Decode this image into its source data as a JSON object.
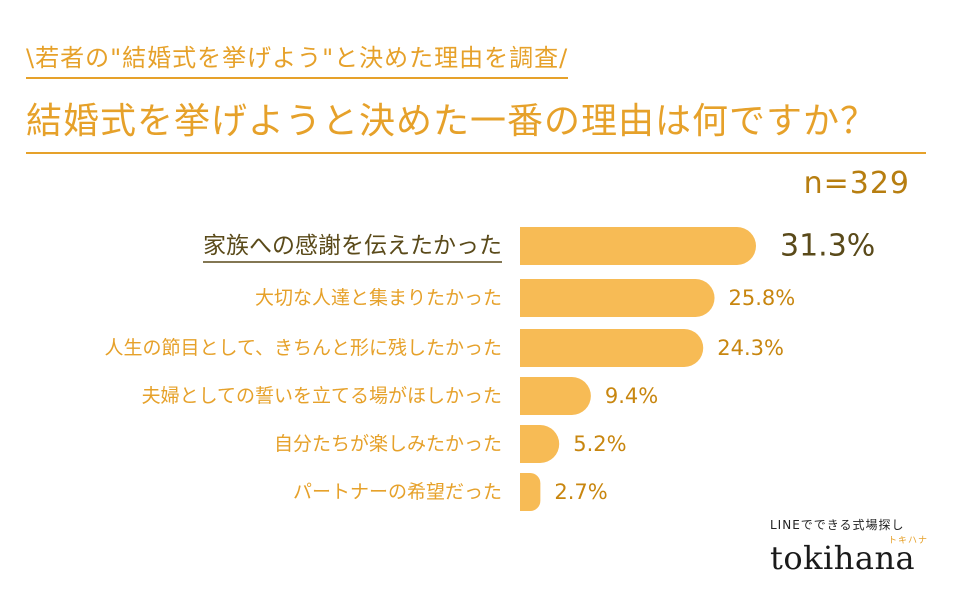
{
  "header": {
    "survey_tag": "\\若者の\"結婚式を挙げよう\"と決めた理由を調査/",
    "question": "結婚式を挙げようと決めた一番の理由は何ですか？",
    "sample_size": "n=329"
  },
  "colors": {
    "accent": "#e6a12a",
    "bar": "#f7bb55",
    "label": "#e6a12a",
    "top_label": "#5a4a1a",
    "top_value": "#5a4a1a",
    "value": "#c8860f"
  },
  "chart_data": {
    "type": "bar",
    "orientation": "horizontal",
    "categories": [
      "家族への感謝を伝えたかった",
      "大切な人達と集まりたかった",
      "人生の節目として、きちんと形に残したかった",
      "夫婦としての誓いを立てる場がほしかった",
      "自分たちが楽しみたかった",
      "パートナーの希望だった"
    ],
    "values": [
      31.3,
      25.8,
      24.3,
      9.4,
      5.2,
      2.7
    ],
    "value_labels": [
      "31.3%",
      "25.8%",
      "24.3%",
      "9.4%",
      "5.2%",
      "2.7%"
    ],
    "highlight_index": 0,
    "xlim": [
      0,
      31.3
    ],
    "grid": false,
    "legend": "none"
  },
  "brand": {
    "tagline": "LINEでできる式場探し",
    "ruby": "トキハナ",
    "name": "tokihana"
  }
}
